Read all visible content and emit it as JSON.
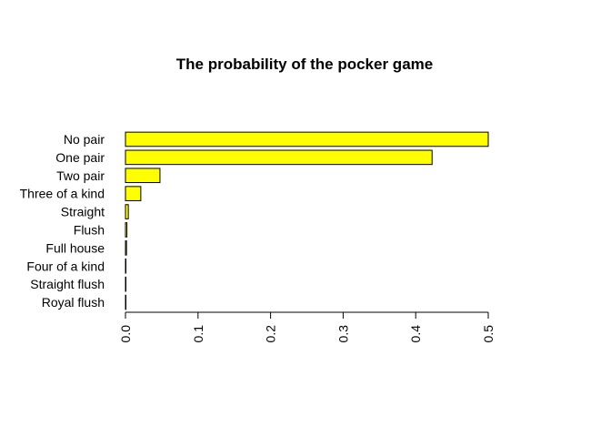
{
  "chart_data": {
    "type": "bar",
    "orientation": "horizontal",
    "title": "The probability of the pocker game",
    "xlabel": "",
    "ylabel": "",
    "categories": [
      "No pair",
      "One pair",
      "Two pair",
      "Three of a kind",
      "Straight",
      "Flush",
      "Full house",
      "Four of a kind",
      "Straight flush",
      "Royal flush"
    ],
    "values": [
      0.501177,
      0.422569,
      0.047539,
      0.021128,
      0.003925,
      0.001965,
      0.001441,
      0.00024,
      1.39e-05,
      1.54e-06
    ],
    "xlim": [
      0,
      0.5
    ],
    "ticks": [
      "0.0",
      "0.1",
      "0.2",
      "0.3",
      "0.4",
      "0.5"
    ],
    "tick_values": [
      0,
      0.1,
      0.2,
      0.3,
      0.4,
      0.5
    ],
    "bar_color": "#ffff00",
    "bar_border": "#000000",
    "grid": false,
    "legend": "none"
  }
}
